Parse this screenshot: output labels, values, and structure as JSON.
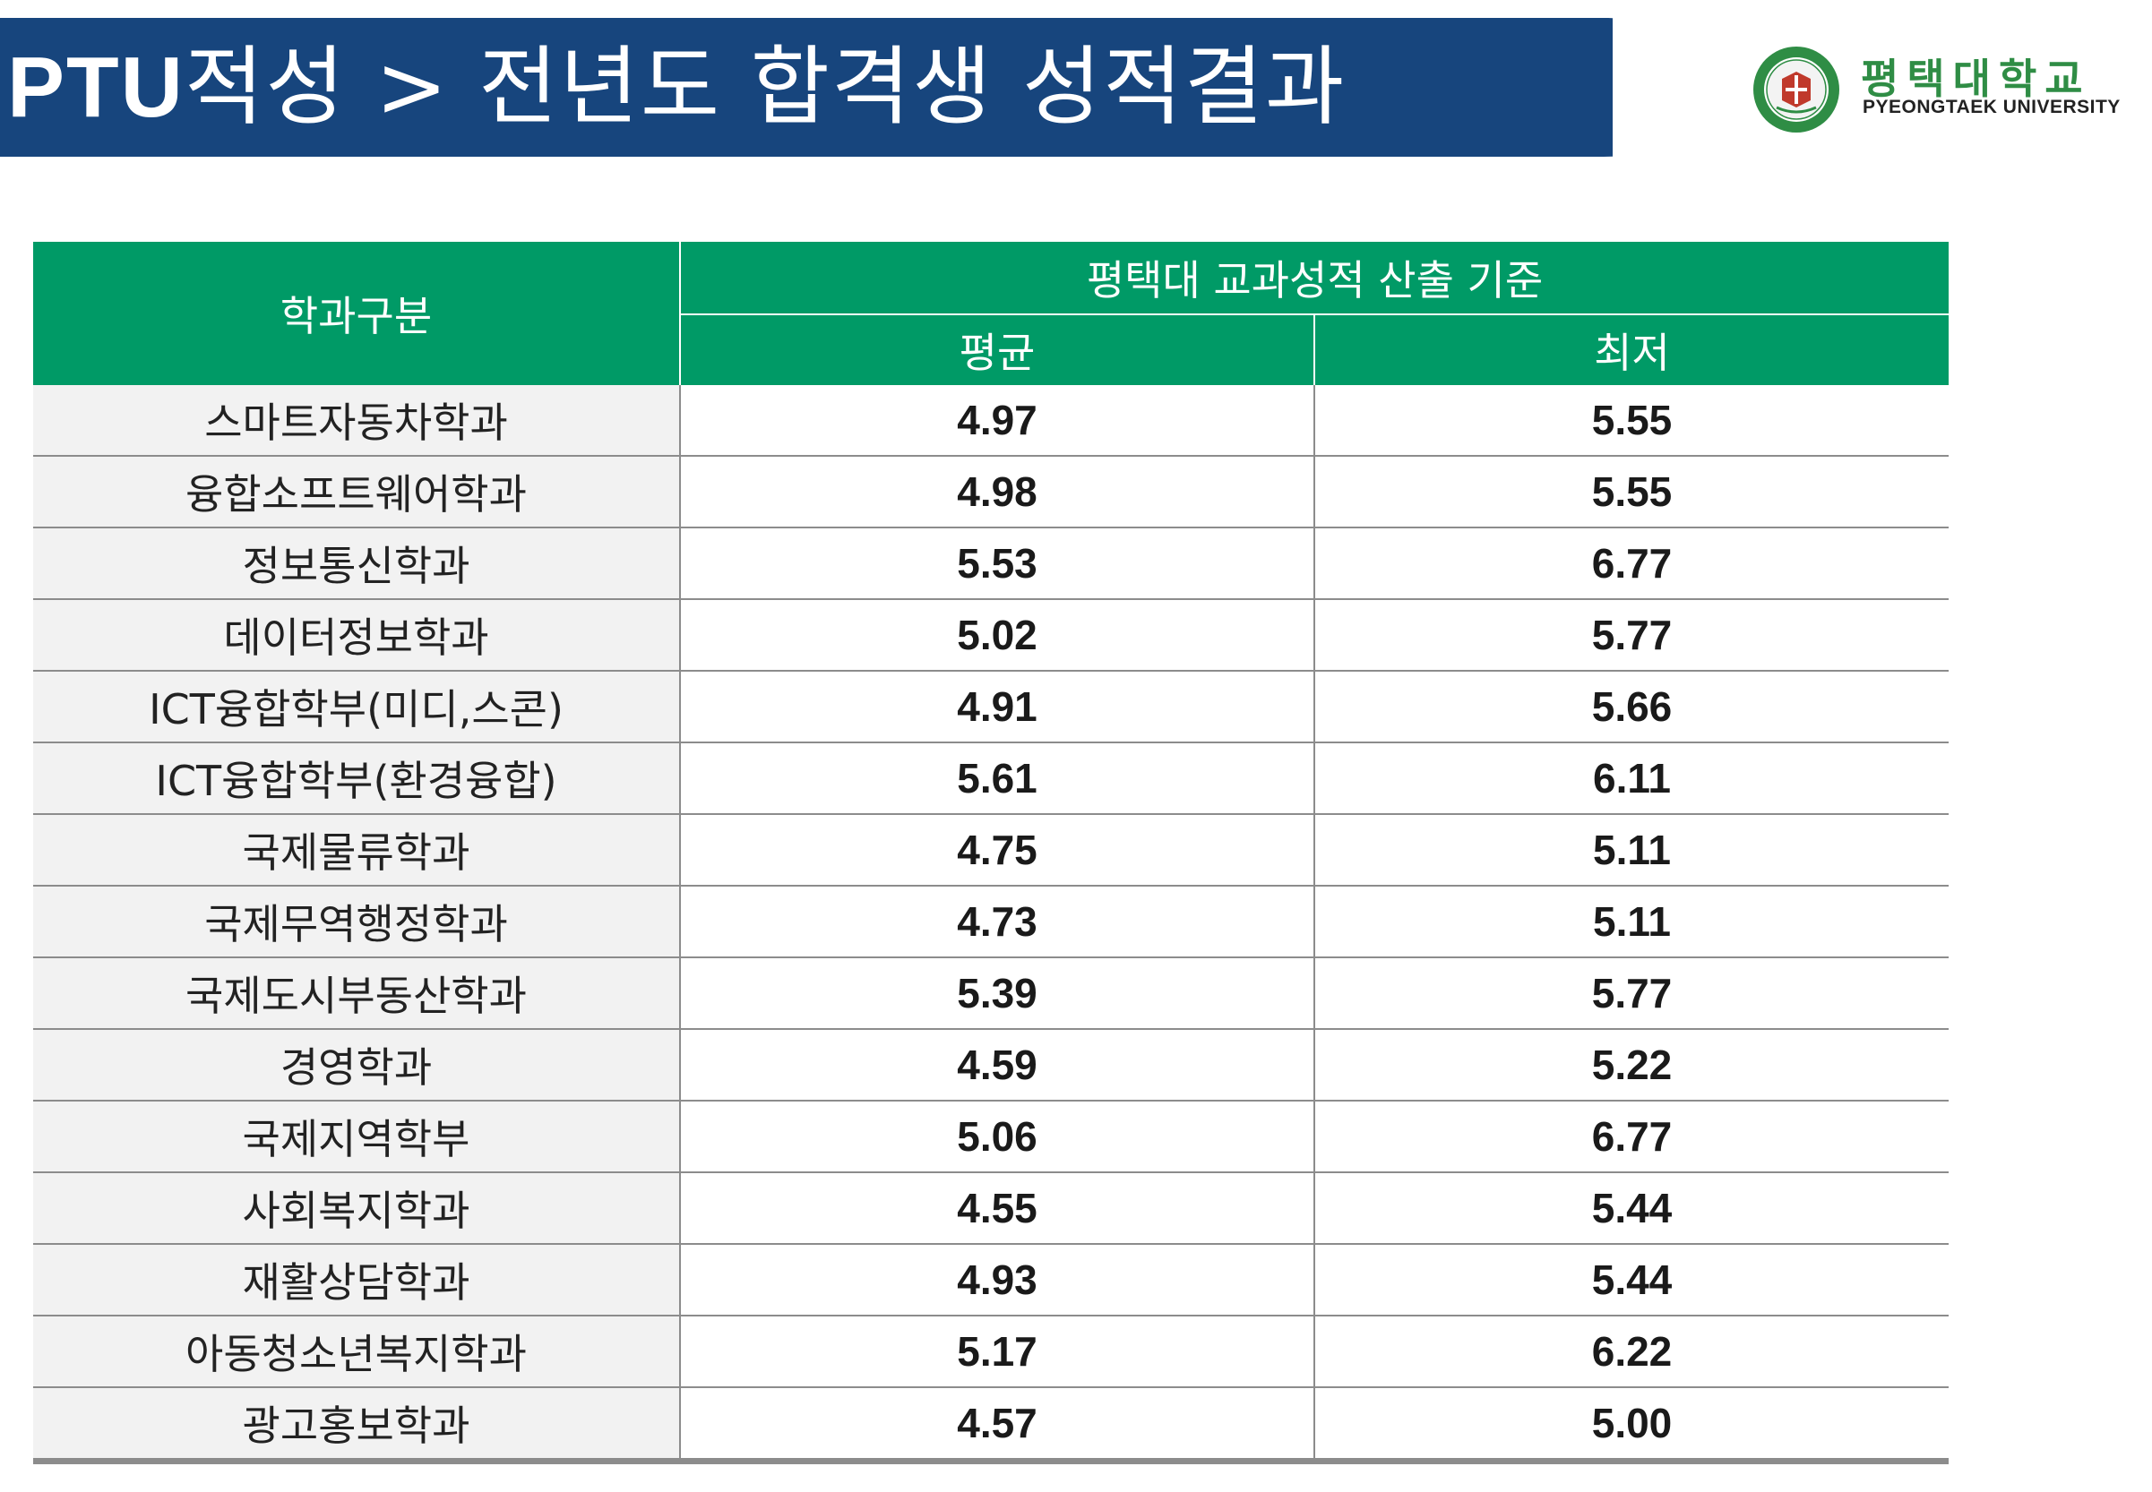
{
  "header": {
    "title_prefix": "PTU",
    "title_rest": "적성 > 전년도 합격생 성적결과"
  },
  "logo": {
    "name_kr": "평택대학교",
    "name_en": "PYEONGTAEK UNIVERSITY",
    "seal_text": "PYEONGTAEK UNIVERSITY"
  },
  "colors": {
    "banner": "#17457d",
    "table_header": "#009a66",
    "logo_green": "#2f8d45"
  },
  "table": {
    "dept_header": "학과구분",
    "criteria_header": "평택대 교과성적 산출 기준",
    "avg_header": "평균",
    "min_header": "최저",
    "rows": [
      {
        "dept": "스마트자동차학과",
        "avg": "4.97",
        "min": "5.55"
      },
      {
        "dept": "융합소프트웨어학과",
        "avg": "4.98",
        "min": "5.55"
      },
      {
        "dept": "정보통신학과",
        "avg": "5.53",
        "min": "6.77"
      },
      {
        "dept": "데이터정보학과",
        "avg": "5.02",
        "min": "5.77"
      },
      {
        "dept": "ICT융합학부(미디,스콘)",
        "avg": "4.91",
        "min": "5.66"
      },
      {
        "dept": "ICT융합학부(환경융합)",
        "avg": "5.61",
        "min": "6.11"
      },
      {
        "dept": "국제물류학과",
        "avg": "4.75",
        "min": "5.11"
      },
      {
        "dept": "국제무역행정학과",
        "avg": "4.73",
        "min": "5.11"
      },
      {
        "dept": "국제도시부동산학과",
        "avg": "5.39",
        "min": "5.77"
      },
      {
        "dept": "경영학과",
        "avg": "4.59",
        "min": "5.22"
      },
      {
        "dept": "국제지역학부",
        "avg": "5.06",
        "min": "6.77"
      },
      {
        "dept": "사회복지학과",
        "avg": "4.55",
        "min": "5.44"
      },
      {
        "dept": "재활상담학과",
        "avg": "4.93",
        "min": "5.44"
      },
      {
        "dept": "아동청소년복지학과",
        "avg": "5.17",
        "min": "6.22"
      },
      {
        "dept": "광고홍보학과",
        "avg": "4.57",
        "min": "5.00"
      }
    ]
  }
}
